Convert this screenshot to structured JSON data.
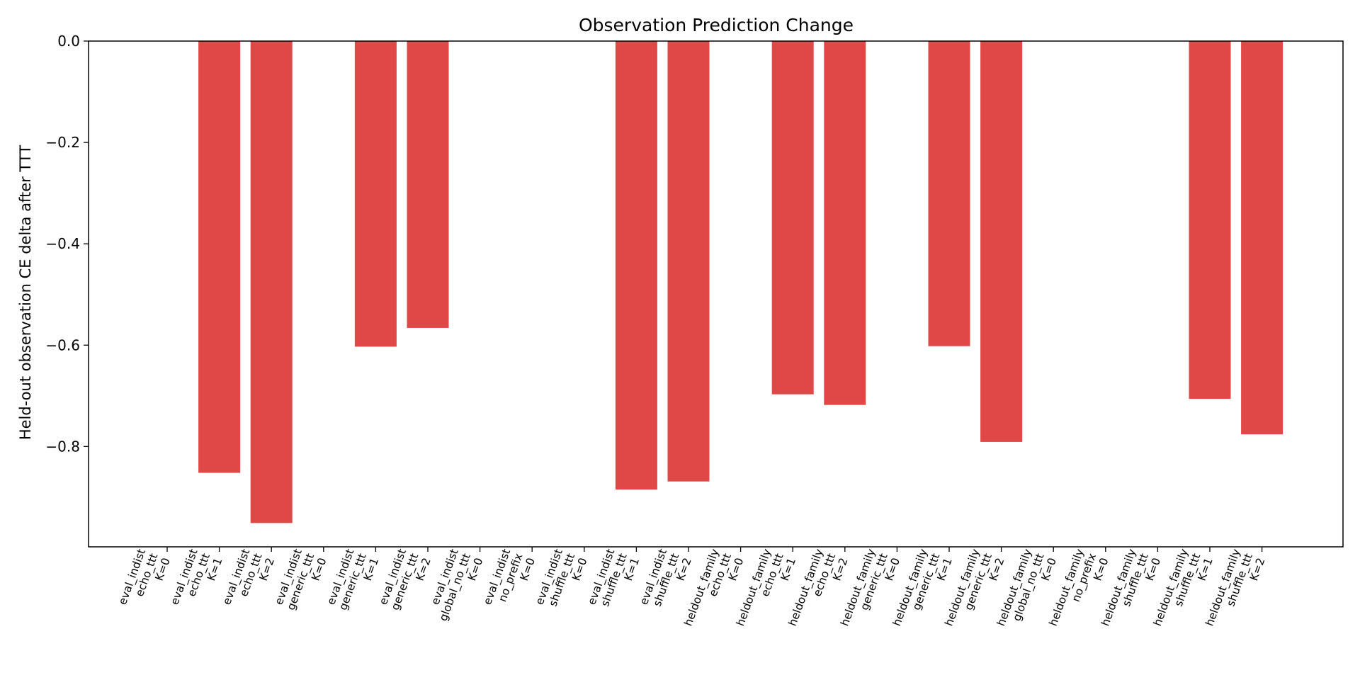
{
  "chart_data": {
    "type": "bar",
    "title": "Observation Prediction Change",
    "xlabel": "",
    "ylabel": "Held-out observation CE delta after TTT",
    "ylim": [
      -1.0,
      0.0
    ],
    "yticks": [
      "0.0",
      "−0.2",
      "−0.4",
      "−0.6",
      "−0.8"
    ],
    "ytick_values": [
      0.0,
      -0.2,
      -0.4,
      -0.6,
      -0.8
    ],
    "grid": false,
    "legend": "none",
    "bar_color": "#e04848",
    "categories": [
      [
        "eval_indist",
        "echo_ttt",
        "K=0"
      ],
      [
        "eval_indist",
        "echo_ttt",
        "K=1"
      ],
      [
        "eval_indist",
        "echo_ttt",
        "K=2"
      ],
      [
        "eval_indist",
        "generic_ttt",
        "K=0"
      ],
      [
        "eval_indist",
        "generic_ttt",
        "K=1"
      ],
      [
        "eval_indist",
        "generic_ttt",
        "K=2"
      ],
      [
        "eval_indist",
        "global_no_ttt",
        "K=0"
      ],
      [
        "eval_indist",
        "no_prefix",
        "K=0"
      ],
      [
        "eval_indist",
        "shuffle_ttt",
        "K=0"
      ],
      [
        "eval_indist",
        "shuffle_ttt",
        "K=1"
      ],
      [
        "eval_indist",
        "shuffle_ttt",
        "K=2"
      ],
      [
        "heldout_family",
        "echo_ttt",
        "K=0"
      ],
      [
        "heldout_family",
        "echo_ttt",
        "K=1"
      ],
      [
        "heldout_family",
        "echo_ttt",
        "K=2"
      ],
      [
        "heldout_family",
        "generic_ttt",
        "K=0"
      ],
      [
        "heldout_family",
        "generic_ttt",
        "K=1"
      ],
      [
        "heldout_family",
        "generic_ttt",
        "K=2"
      ],
      [
        "heldout_family",
        "global_no_ttt",
        "K=0"
      ],
      [
        "heldout_family",
        "no_prefix",
        "K=0"
      ],
      [
        "heldout_family",
        "shuffle_ttt",
        "K=0"
      ],
      [
        "heldout_family",
        "shuffle_ttt",
        "K=1"
      ],
      [
        "heldout_family",
        "shuffle_ttt",
        "K=2"
      ]
    ],
    "values": [
      0.0,
      -0.852,
      -0.951,
      0.0,
      -0.603,
      -0.566,
      0.0,
      0.0,
      0.0,
      -0.885,
      -0.869,
      0.0,
      -0.697,
      -0.718,
      0.0,
      -0.602,
      -0.791,
      0.0,
      0.0,
      0.0,
      -0.706,
      -0.776
    ]
  }
}
